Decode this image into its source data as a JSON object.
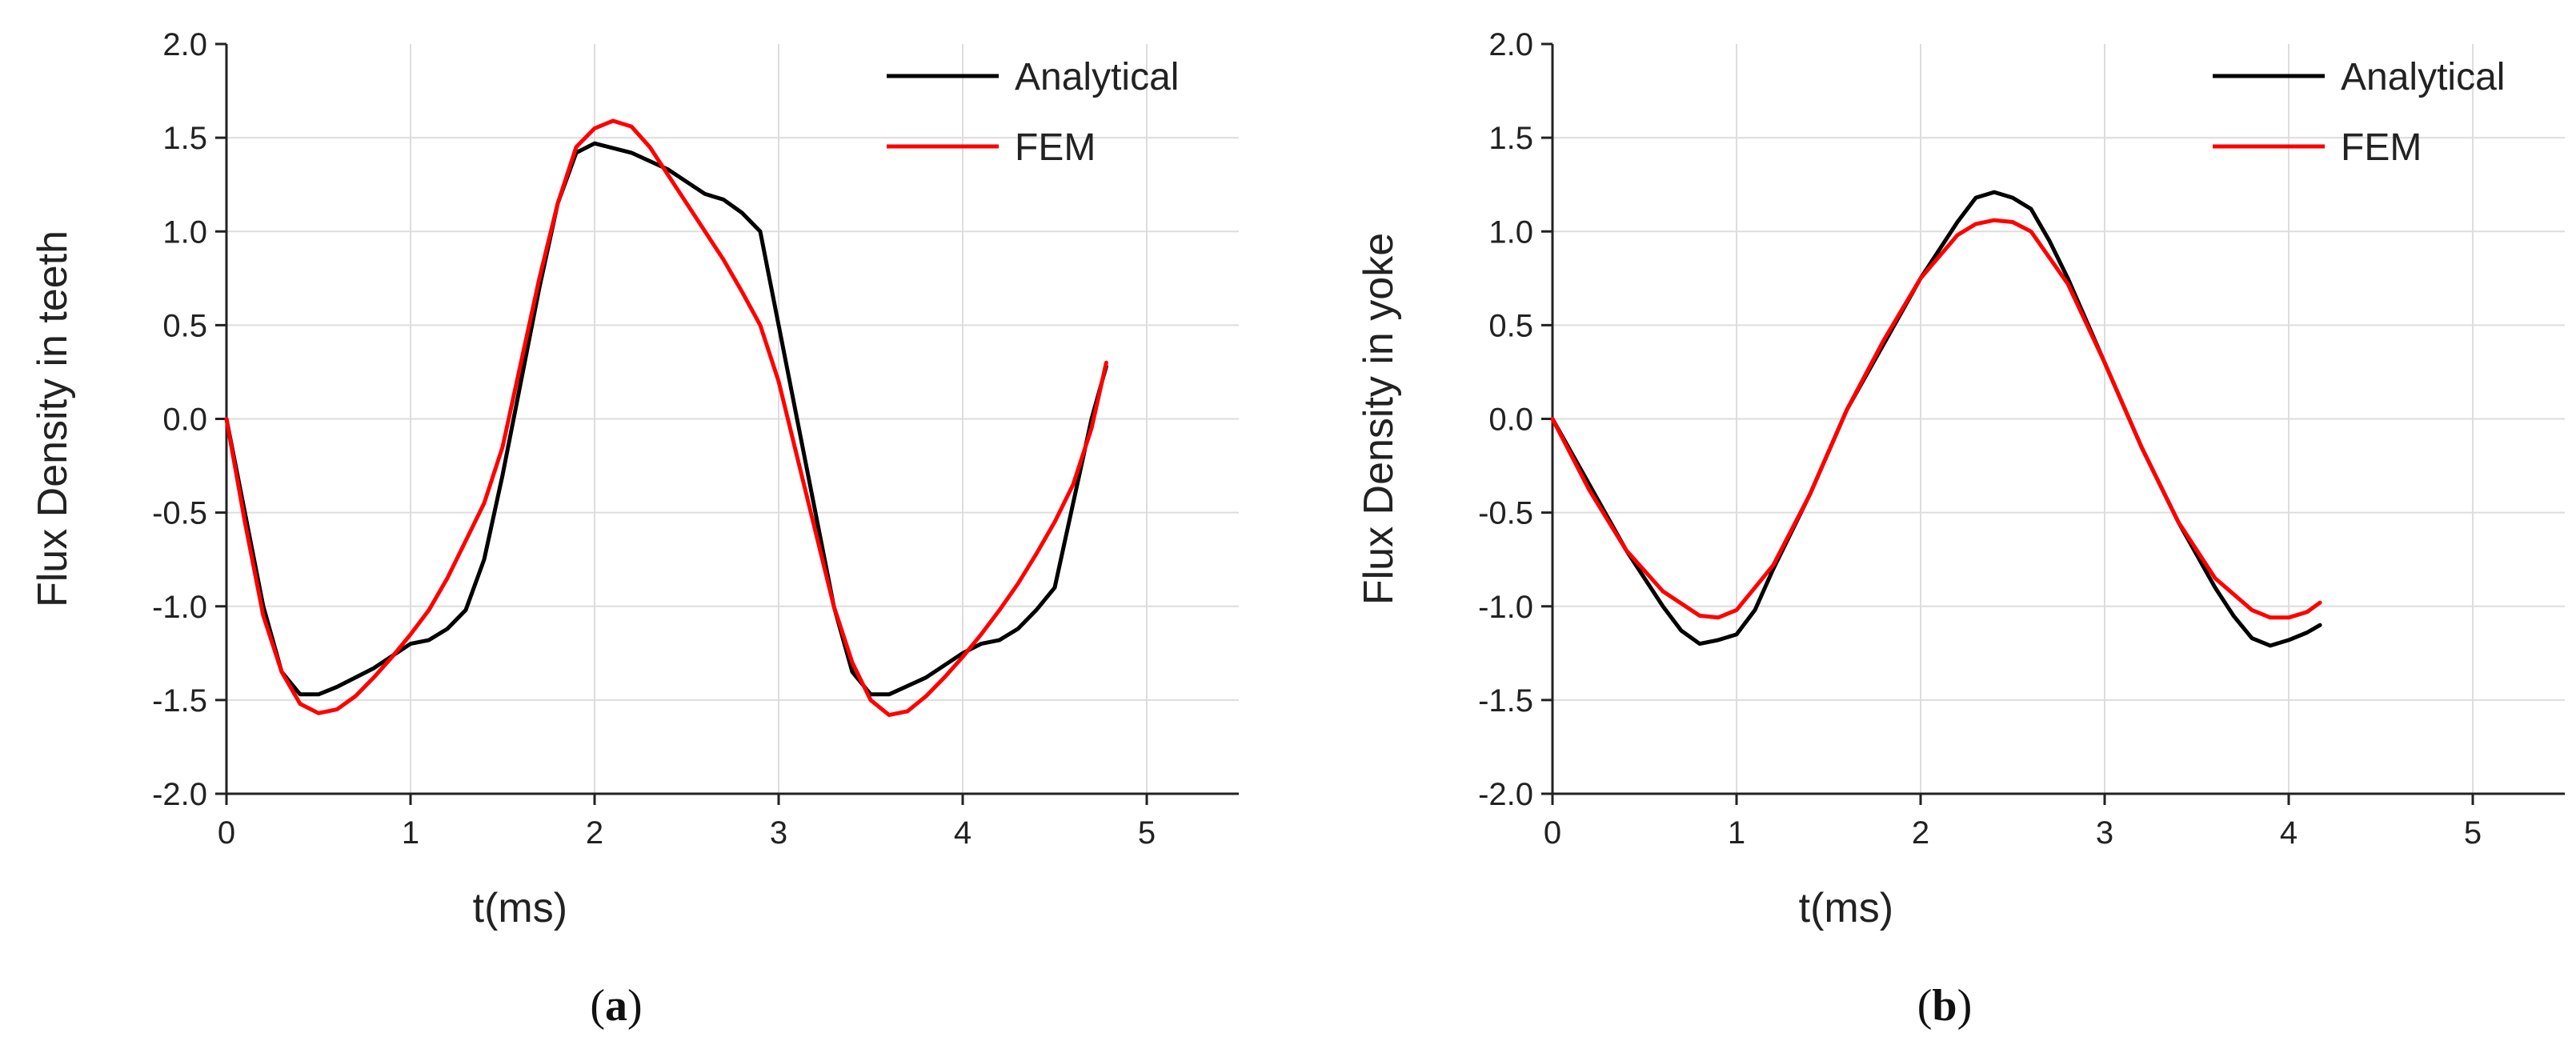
{
  "chart_data": [
    {
      "type": "line",
      "panel_label": "a",
      "xlabel": "t(ms)",
      "ylabel": "Flux Density in teeth",
      "xlim": [
        0,
        5.5
      ],
      "ylim": [
        -2.0,
        2.0
      ],
      "xticks": [
        "0",
        "1",
        "2",
        "3",
        "4",
        "5"
      ],
      "yticks": [
        "2.0",
        "1.5",
        "1.0",
        "0.5",
        "0.0",
        "-0.5",
        "-1.0",
        "-1.5",
        "-2.0"
      ],
      "grid": true,
      "legend_position": "top-right",
      "series": [
        {
          "name": "Analytical",
          "color": "#000000",
          "x": [
            0,
            0.1,
            0.2,
            0.3,
            0.4,
            0.5,
            0.6,
            0.8,
            1.0,
            1.1,
            1.2,
            1.3,
            1.4,
            1.5,
            1.6,
            1.7,
            1.8,
            1.9,
            2.0,
            2.2,
            2.4,
            2.6,
            2.7,
            2.8,
            2.9,
            3.0,
            3.1,
            3.2,
            3.3,
            3.4,
            3.5,
            3.6,
            3.8,
            4.0,
            4.1,
            4.2,
            4.3,
            4.4,
            4.5,
            4.6,
            4.7,
            4.78
          ],
          "y": [
            0.0,
            -0.5,
            -1.0,
            -1.35,
            -1.47,
            -1.47,
            -1.43,
            -1.33,
            -1.2,
            -1.18,
            -1.12,
            -1.02,
            -0.75,
            -0.3,
            0.2,
            0.7,
            1.15,
            1.42,
            1.47,
            1.42,
            1.33,
            1.2,
            1.17,
            1.1,
            1.0,
            0.5,
            0.0,
            -0.5,
            -1.0,
            -1.35,
            -1.47,
            -1.47,
            -1.38,
            -1.25,
            -1.2,
            -1.18,
            -1.12,
            -1.02,
            -0.9,
            -0.45,
            0.0,
            0.28
          ]
        },
        {
          "name": "FEM",
          "color": "#ff0000",
          "x": [
            0,
            0.1,
            0.2,
            0.3,
            0.4,
            0.5,
            0.6,
            0.7,
            0.8,
            0.9,
            1.0,
            1.1,
            1.2,
            1.3,
            1.4,
            1.5,
            1.6,
            1.7,
            1.8,
            1.9,
            2.0,
            2.1,
            2.2,
            2.3,
            2.4,
            2.5,
            2.6,
            2.7,
            2.8,
            2.9,
            3.0,
            3.1,
            3.2,
            3.3,
            3.4,
            3.5,
            3.6,
            3.7,
            3.8,
            3.9,
            4.0,
            4.1,
            4.2,
            4.3,
            4.4,
            4.5,
            4.6,
            4.7,
            4.78
          ],
          "y": [
            0.0,
            -0.55,
            -1.05,
            -1.35,
            -1.52,
            -1.57,
            -1.55,
            -1.48,
            -1.38,
            -1.27,
            -1.15,
            -1.02,
            -0.85,
            -0.65,
            -0.45,
            -0.15,
            0.3,
            0.75,
            1.15,
            1.45,
            1.55,
            1.59,
            1.56,
            1.45,
            1.3,
            1.15,
            1.0,
            0.85,
            0.68,
            0.5,
            0.2,
            -0.2,
            -0.6,
            -1.0,
            -1.3,
            -1.5,
            -1.58,
            -1.56,
            -1.48,
            -1.38,
            -1.27,
            -1.15,
            -1.02,
            -0.88,
            -0.72,
            -0.55,
            -0.35,
            -0.05,
            0.3
          ]
        }
      ]
    },
    {
      "type": "line",
      "panel_label": "b",
      "xlabel": "t(ms)",
      "ylabel": "Flux Density in yoke",
      "xlim": [
        0,
        5.5
      ],
      "ylim": [
        -2.0,
        2.0
      ],
      "xticks": [
        "0",
        "1",
        "2",
        "3",
        "4",
        "5"
      ],
      "yticks": [
        "2.0",
        "1.5",
        "1.0",
        "0.5",
        "0.0",
        "-0.5",
        "-1.0",
        "-1.5",
        "-2.0"
      ],
      "grid": true,
      "legend_position": "top-right",
      "series": [
        {
          "name": "Analytical",
          "color": "#000000",
          "x": [
            0,
            0.2,
            0.4,
            0.6,
            0.7,
            0.8,
            0.9,
            1.0,
            1.1,
            1.2,
            1.4,
            1.6,
            1.8,
            2.0,
            2.2,
            2.3,
            2.4,
            2.5,
            2.6,
            2.7,
            2.8,
            3.0,
            3.2,
            3.4,
            3.6,
            3.7,
            3.8,
            3.9,
            4.0,
            4.1,
            4.17
          ],
          "y": [
            0.0,
            -0.35,
            -0.7,
            -1.0,
            -1.13,
            -1.2,
            -1.18,
            -1.15,
            -1.02,
            -0.8,
            -0.4,
            0.05,
            0.4,
            0.75,
            1.05,
            1.18,
            1.21,
            1.18,
            1.12,
            0.95,
            0.75,
            0.3,
            -0.15,
            -0.55,
            -0.9,
            -1.05,
            -1.17,
            -1.21,
            -1.18,
            -1.14,
            -1.1
          ]
        },
        {
          "name": "FEM",
          "color": "#ff0000",
          "x": [
            0,
            0.2,
            0.4,
            0.6,
            0.8,
            0.9,
            1.0,
            1.2,
            1.4,
            1.6,
            1.8,
            2.0,
            2.2,
            2.3,
            2.4,
            2.5,
            2.6,
            2.8,
            3.0,
            3.2,
            3.4,
            3.6,
            3.8,
            3.9,
            4.0,
            4.1,
            4.17
          ],
          "y": [
            0.0,
            -0.38,
            -0.7,
            -0.92,
            -1.05,
            -1.06,
            -1.02,
            -0.78,
            -0.4,
            0.05,
            0.42,
            0.75,
            0.98,
            1.04,
            1.06,
            1.05,
            1.0,
            0.72,
            0.3,
            -0.15,
            -0.55,
            -0.85,
            -1.02,
            -1.06,
            -1.06,
            -1.03,
            -0.98
          ]
        }
      ]
    }
  ]
}
